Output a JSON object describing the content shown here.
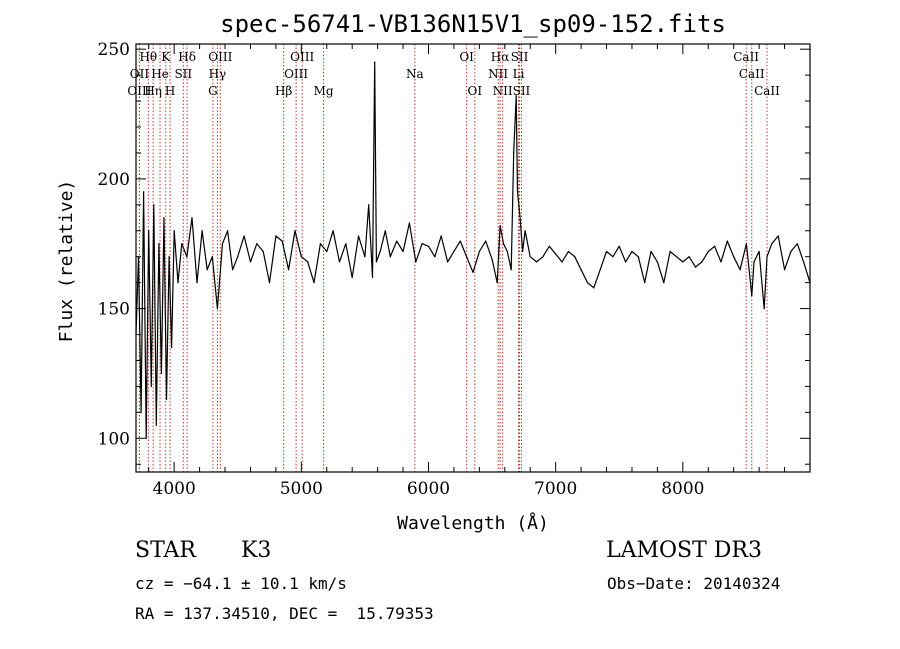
{
  "chart_data": {
    "type": "line",
    "title": "spec-56741-VB136N15V1_sp09-152.fits",
    "xlabel": "Wavelength (Å)",
    "ylabel": "Flux (relative)",
    "xlim": [
      3700,
      9000
    ],
    "ylim": [
      87,
      252
    ],
    "x_ticks": [
      4000,
      5000,
      6000,
      7000,
      8000
    ],
    "x_tick_labels": [
      "4000",
      "5000",
      "6000",
      "7000",
      "8000"
    ],
    "y_ticks": [
      100,
      150,
      200,
      250
    ],
    "y_tick_labels": [
      "100",
      "150",
      "200",
      "250"
    ],
    "colors": {
      "spectrum": "#000000",
      "lines": "#c0392b",
      "axes": "#000000"
    },
    "series": [
      {
        "name": "spectrum",
        "x": [
          3700,
          3720,
          3740,
          3760,
          3780,
          3800,
          3820,
          3840,
          3860,
          3880,
          3900,
          3920,
          3940,
          3960,
          3980,
          4000,
          4030,
          4060,
          4100,
          4140,
          4180,
          4220,
          4260,
          4300,
          4340,
          4380,
          4420,
          4460,
          4500,
          4550,
          4600,
          4650,
          4700,
          4750,
          4800,
          4850,
          4900,
          4950,
          5000,
          5050,
          5100,
          5150,
          5200,
          5250,
          5300,
          5350,
          5400,
          5450,
          5500,
          5530,
          5560,
          5577,
          5590,
          5620,
          5660,
          5700,
          5750,
          5800,
          5850,
          5900,
          5950,
          6000,
          6050,
          6100,
          6150,
          6200,
          6250,
          6300,
          6350,
          6400,
          6450,
          6500,
          6540,
          6563,
          6590,
          6620,
          6650,
          6670,
          6690,
          6700,
          6720,
          6740,
          6760,
          6800,
          6850,
          6900,
          6950,
          7000,
          7050,
          7100,
          7150,
          7200,
          7250,
          7300,
          7350,
          7400,
          7450,
          7500,
          7550,
          7600,
          7650,
          7700,
          7750,
          7800,
          7850,
          7900,
          7950,
          8000,
          8050,
          8100,
          8150,
          8200,
          8250,
          8300,
          8350,
          8400,
          8450,
          8500,
          8542,
          8560,
          8600,
          8640,
          8662,
          8700,
          8750,
          8800,
          8850,
          8900,
          8950,
          9000
        ],
        "values": [
          140,
          170,
          110,
          195,
          100,
          180,
          120,
          190,
          105,
          175,
          125,
          185,
          115,
          170,
          135,
          180,
          160,
          175,
          170,
          185,
          160,
          180,
          165,
          170,
          150,
          175,
          180,
          165,
          170,
          178,
          168,
          175,
          172,
          160,
          178,
          176,
          165,
          180,
          170,
          168,
          160,
          175,
          172,
          180,
          168,
          175,
          162,
          178,
          170,
          190,
          162,
          245,
          168,
          172,
          180,
          170,
          176,
          172,
          183,
          168,
          175,
          174,
          170,
          178,
          168,
          172,
          176,
          170,
          164,
          172,
          176,
          169,
          160,
          182,
          175,
          172,
          165,
          210,
          232,
          195,
          185,
          172,
          180,
          170,
          168,
          170,
          174,
          171,
          168,
          172,
          170,
          165,
          160,
          158,
          165,
          172,
          170,
          174,
          168,
          172,
          170,
          160,
          172,
          168,
          160,
          172,
          170,
          168,
          170,
          166,
          168,
          172,
          174,
          168,
          176,
          170,
          165,
          175,
          155,
          168,
          172,
          150,
          170,
          175,
          178,
          165,
          172,
          175,
          168,
          160
        ]
      }
    ],
    "spectral_lines": [
      {
        "label": "Hθ",
        "wavelength": 3797,
        "row": 1
      },
      {
        "label": "OII",
        "wavelength": 3727,
        "row": 2
      },
      {
        "label": "OIII",
        "wavelength": 3727,
        "row": 3
      },
      {
        "label": "He",
        "wavelength": 3889,
        "row": 2
      },
      {
        "label": "Hη",
        "wavelength": 3835,
        "row": 3
      },
      {
        "label": "K",
        "wavelength": 3934,
        "row": 1
      },
      {
        "label": "H",
        "wavelength": 3968,
        "row": 3
      },
      {
        "label": "Hδ",
        "wavelength": 4102,
        "row": 1
      },
      {
        "label": "SII",
        "wavelength": 4072,
        "row": 2
      },
      {
        "label": "OIII",
        "wavelength": 4363,
        "row": 1
      },
      {
        "label": "Hγ",
        "wavelength": 4340,
        "row": 2
      },
      {
        "label": "G",
        "wavelength": 4305,
        "row": 3
      },
      {
        "label": "Hβ",
        "wavelength": 4861,
        "row": 3
      },
      {
        "label": "OIII",
        "wavelength": 5007,
        "row": 1
      },
      {
        "label": "OIII",
        "wavelength": 4959,
        "row": 2
      },
      {
        "label": "Mg",
        "wavelength": 5175,
        "row": 3
      },
      {
        "label": "Na",
        "wavelength": 5893,
        "row": 2
      },
      {
        "label": "OI",
        "wavelength": 6300,
        "row": 1
      },
      {
        "label": "OI",
        "wavelength": 6364,
        "row": 3
      },
      {
        "label": "Hα",
        "wavelength": 6563,
        "row": 1
      },
      {
        "label": "SII",
        "wavelength": 6716,
        "row": 1
      },
      {
        "label": "NII",
        "wavelength": 6548,
        "row": 2
      },
      {
        "label": "Li",
        "wavelength": 6708,
        "row": 2
      },
      {
        "label": "NII",
        "wavelength": 6583,
        "row": 3
      },
      {
        "label": "SII",
        "wavelength": 6731,
        "row": 3
      },
      {
        "label": "CaII",
        "wavelength": 8498,
        "row": 1
      },
      {
        "label": "CaII",
        "wavelength": 8542,
        "row": 2
      },
      {
        "label": "CaII",
        "wavelength": 8662,
        "row": 3
      }
    ]
  },
  "info": {
    "class": "STAR",
    "subclass": "K3",
    "survey": "LAMOST DR3",
    "cz": "cz = −64.1 ± 10.1 km/s",
    "obs_date": "Obs−Date: 20140324",
    "coords": "RA = 137.34510, DEC =  15.79353"
  }
}
